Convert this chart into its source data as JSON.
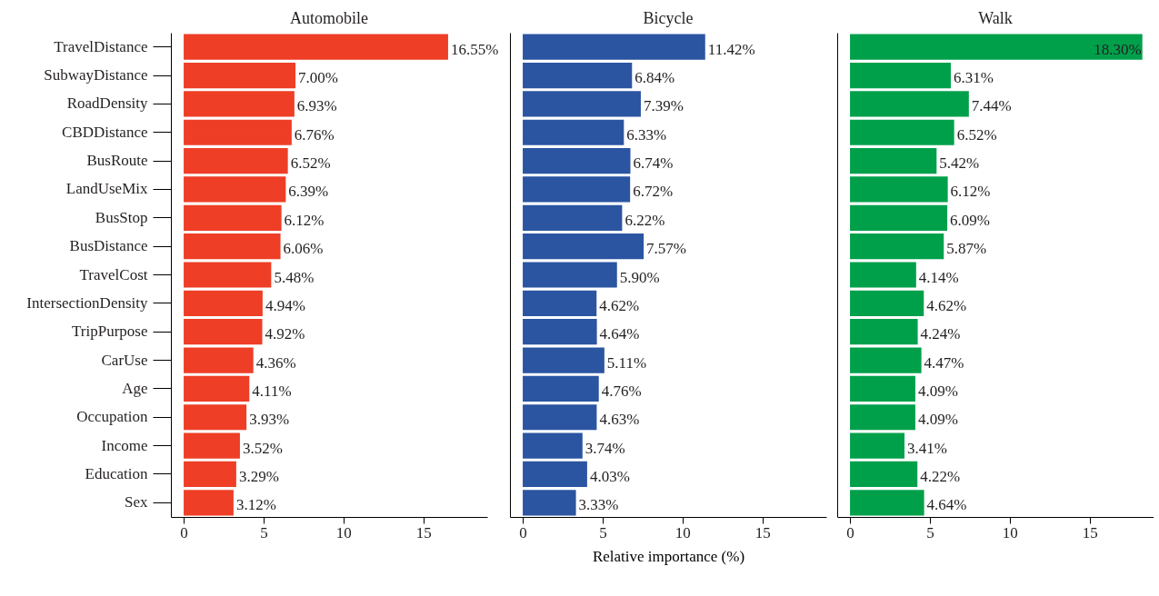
{
  "chart_data": [
    {
      "type": "bar",
      "orientation": "horizontal",
      "title": "Automobile",
      "categories": [
        "TravelDistance",
        "SubwayDistance",
        "RoadDensity",
        "CBDDistance",
        "BusRoute",
        "LandUseMix",
        "BusStop",
        "BusDistance",
        "TravelCost",
        "IntersectionDensity",
        "TripPurpose",
        "CarUse",
        "Age",
        "Occupation",
        "Income",
        "Education",
        "Sex"
      ],
      "values": [
        16.55,
        7.0,
        6.93,
        6.76,
        6.52,
        6.39,
        6.12,
        6.06,
        5.48,
        4.94,
        4.92,
        4.36,
        4.11,
        3.93,
        3.52,
        3.29,
        3.12
      ],
      "value_labels": [
        "16.55%",
        "7.00%",
        "6.93%",
        "6.76%",
        "6.52%",
        "6.39%",
        "6.12%",
        "6.06%",
        "5.48%",
        "4.94%",
        "4.92%",
        "4.36%",
        "4.11%",
        "3.93%",
        "3.52%",
        "3.29%",
        "3.12%"
      ],
      "color": "#ee3e26",
      "xlim": [
        -0.8,
        19
      ],
      "xticks": [
        0,
        5,
        10,
        15
      ]
    },
    {
      "type": "bar",
      "orientation": "horizontal",
      "title": "Bicycle",
      "xlabel": "Relative importance (%)",
      "tick_labels": "x",
      "categories": [
        null,
        null,
        null,
        null,
        null,
        null,
        null,
        null,
        null,
        null,
        null,
        null,
        null,
        null,
        null,
        null,
        null
      ],
      "values": [
        11.42,
        6.84,
        7.39,
        6.33,
        6.74,
        6.72,
        6.22,
        7.57,
        5.9,
        4.62,
        4.64,
        5.11,
        4.76,
        4.63,
        3.74,
        4.03,
        3.33
      ],
      "value_labels": [
        "11.42%",
        "6.84%",
        "7.39%",
        "6.33%",
        "6.74%",
        "6.72%",
        "6.22%",
        "7.57%",
        "5.90%",
        "4.62%",
        "4.64%",
        "5.11%",
        "4.76%",
        "4.63%",
        "3.74%",
        "4.03%",
        "3.33%"
      ],
      "color": "#2b55a1",
      "xlim": [
        -0.8,
        19
      ],
      "xticks": [
        0,
        5,
        10,
        15
      ]
    },
    {
      "type": "bar",
      "orientation": "horizontal",
      "title": "Walk",
      "tick_labels": "x",
      "categories": [
        null,
        null,
        null,
        null,
        null,
        null,
        null,
        null,
        null,
        null,
        null,
        null,
        null,
        null,
        null,
        null,
        null
      ],
      "values": [
        18.3,
        6.31,
        7.44,
        6.52,
        5.42,
        6.12,
        6.09,
        5.87,
        4.14,
        4.62,
        4.24,
        4.47,
        4.09,
        4.09,
        3.41,
        4.22,
        4.64
      ],
      "value_labels": [
        "18.30%",
        "6.31%",
        "7.44%",
        "6.52%",
        "5.42%",
        "6.12%",
        "6.09%",
        "5.87%",
        "4.14%",
        "4.62%",
        "4.24%",
        "4.47%",
        "4.09%",
        "4.09%",
        "3.41%",
        "4.22%",
        "4.64%"
      ],
      "color": "#00a04b",
      "xlim": [
        -0.8,
        19
      ],
      "xticks": [
        0,
        5,
        10,
        15
      ]
    }
  ]
}
